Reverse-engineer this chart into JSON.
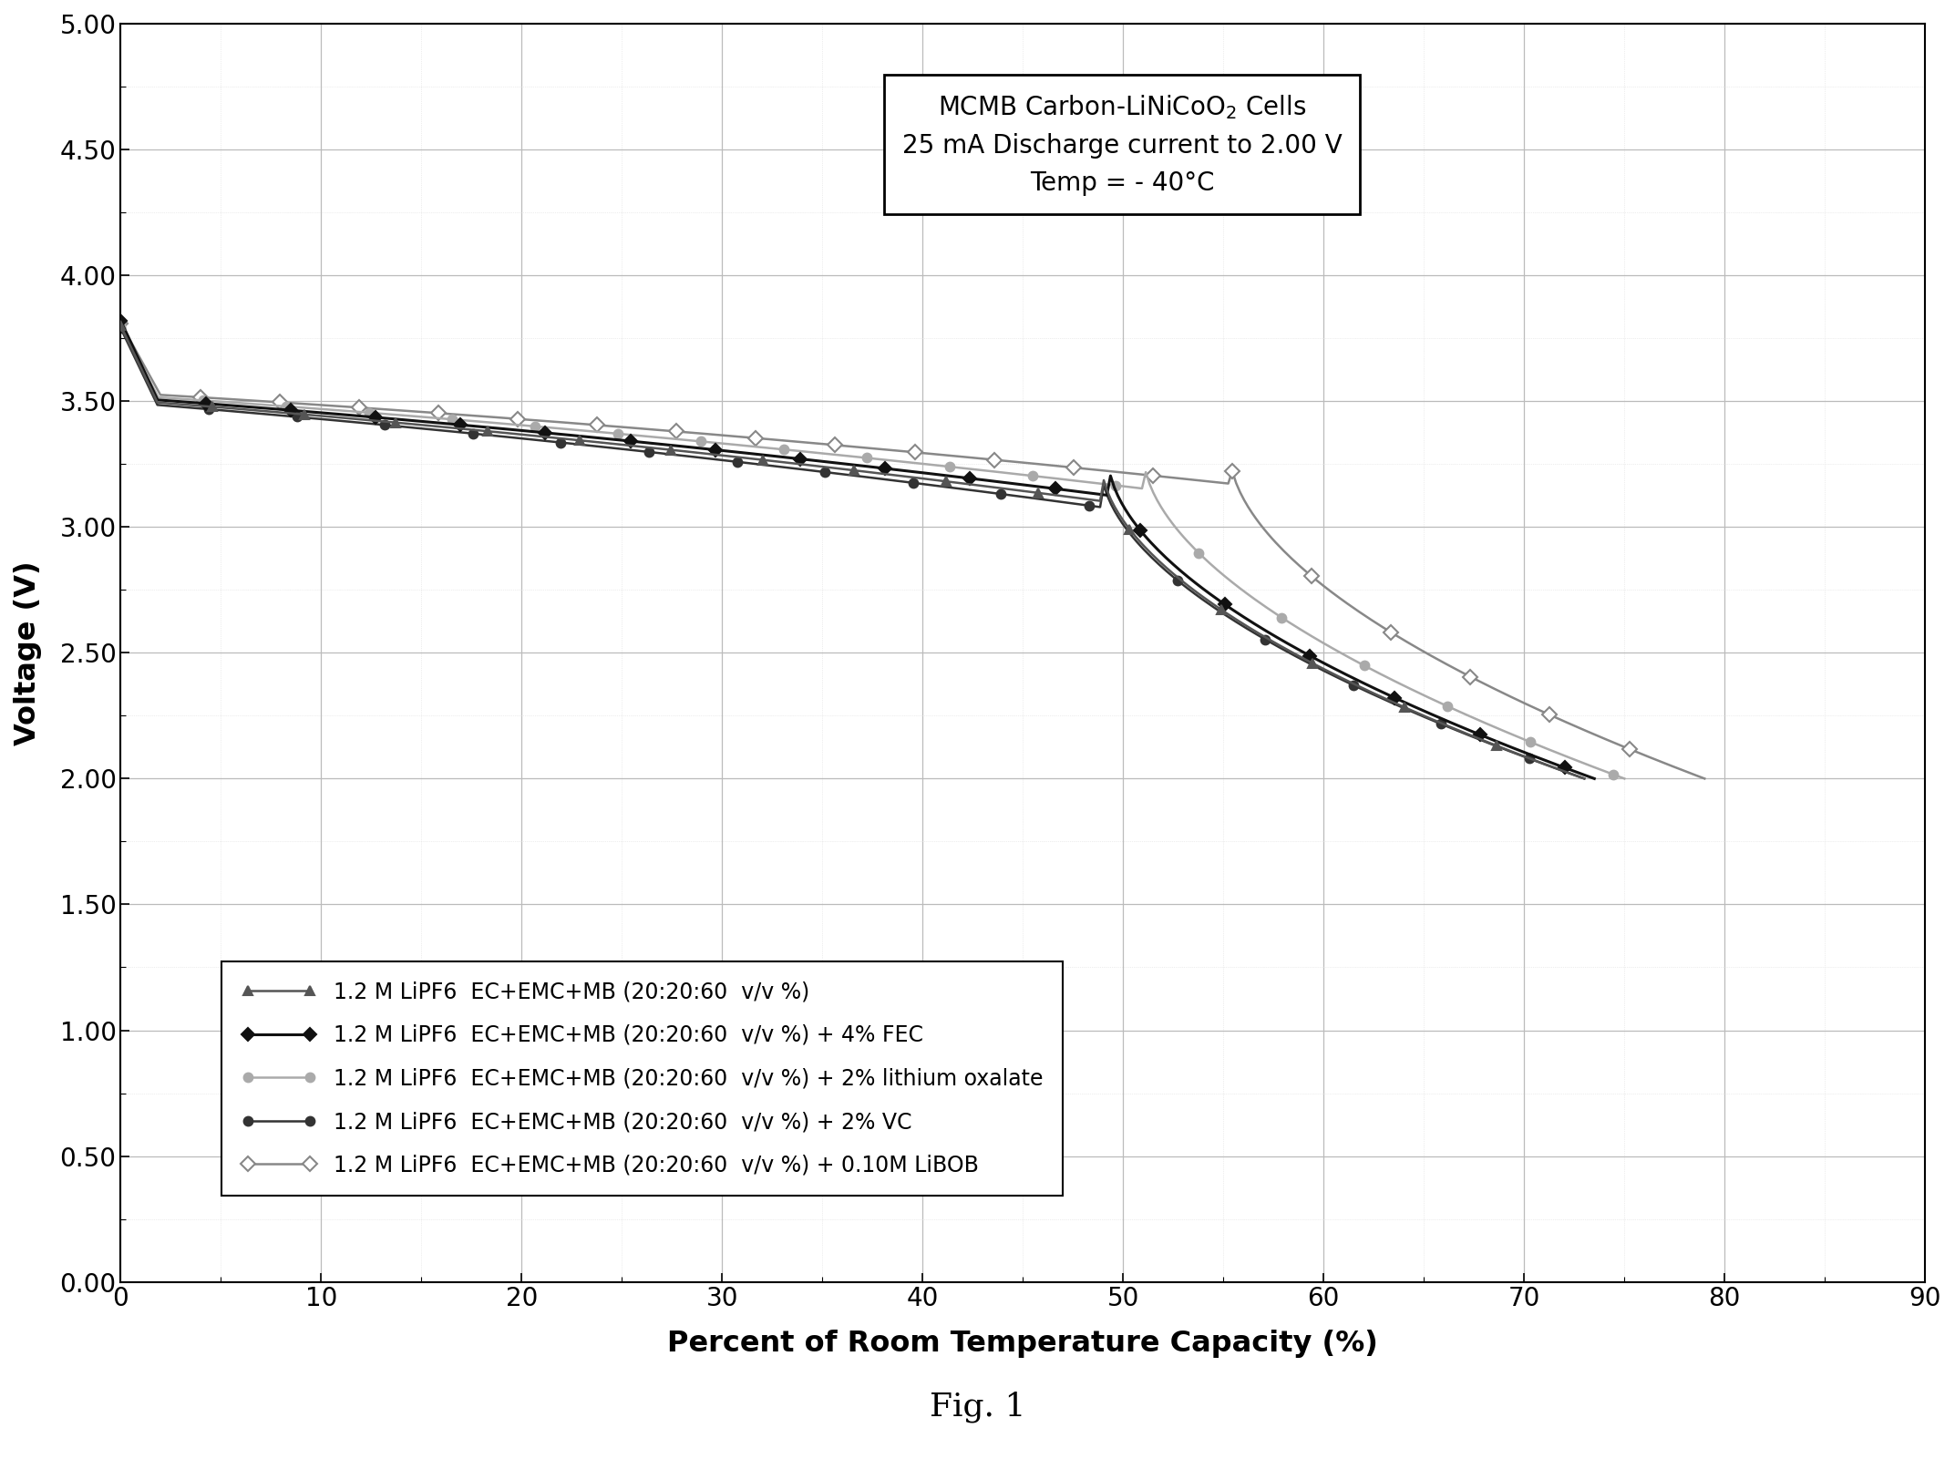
{
  "title_text": "MCMB Carbon-LiNiCoO$_2$ Cells\n25 mA Discharge current to 2.00 V\nTemp = - 40°C",
  "xlabel": "Percent of Room Temperature Capacity (%)",
  "ylabel": "Voltage (V)",
  "xlim": [
    0,
    90
  ],
  "ylim": [
    0.0,
    5.0
  ],
  "xticks": [
    0,
    10,
    20,
    30,
    40,
    50,
    60,
    70,
    80,
    90
  ],
  "yticks": [
    0.0,
    0.5,
    1.0,
    1.5,
    2.0,
    2.5,
    3.0,
    3.5,
    4.0,
    4.5,
    5.0
  ],
  "fig_caption": "Fig. 1",
  "series": [
    {
      "label": "1.2 M LiPF6  EC+EMC+MB (20:20:60  v/v %)",
      "color": "#555555",
      "marker": "^",
      "markersize": 7,
      "linewidth": 1.8,
      "marker_fillstyle": "full",
      "x_end": 73.0,
      "v_start": 3.8,
      "v_plateau": 3.345,
      "plateau_slope": -0.004,
      "steep_start": 0.67
    },
    {
      "label": "1.2 M LiPF6  EC+EMC+MB (20:20:60  v/v %) + 4% FEC",
      "color": "#111111",
      "marker": "D",
      "markersize": 7,
      "linewidth": 2.2,
      "marker_fillstyle": "full",
      "x_end": 73.5,
      "v_start": 3.82,
      "v_plateau": 3.355,
      "plateau_slope": -0.0038,
      "steep_start": 0.67
    },
    {
      "label": "1.2 M LiPF6  EC+EMC+MB (20:20:60  v/v %) + 2% lithium oxalate",
      "color": "#aaaaaa",
      "marker": "o",
      "markersize": 7,
      "linewidth": 1.8,
      "marker_fillstyle": "full",
      "x_end": 75.0,
      "v_start": 3.8,
      "v_plateau": 3.365,
      "plateau_slope": -0.0035,
      "steep_start": 0.68
    },
    {
      "label": "1.2 M LiPF6  EC+EMC+MB (20:20:60  v/v %) + 2% VC",
      "color": "#333333",
      "marker": "o",
      "markersize": 7,
      "linewidth": 1.8,
      "marker_fillstyle": "full",
      "x_end": 73.0,
      "v_start": 3.79,
      "v_plateau": 3.335,
      "plateau_slope": -0.0042,
      "steep_start": 0.67
    },
    {
      "label": "1.2 M LiPF6  EC+EMC+MB (20:20:60  v/v %) + 0.10M LiBOB",
      "color": "#888888",
      "marker": "D",
      "markersize": 8,
      "linewidth": 1.8,
      "marker_fillstyle": "none",
      "x_end": 79.0,
      "v_start": 3.81,
      "v_plateau": 3.375,
      "plateau_slope": -0.0032,
      "steep_start": 0.7
    }
  ],
  "background_color": "#ffffff",
  "grid_color": "#bbbbbb",
  "grid_minor_color": "#dddddd",
  "markevery_vals": [
    25,
    23,
    22,
    24,
    20
  ]
}
